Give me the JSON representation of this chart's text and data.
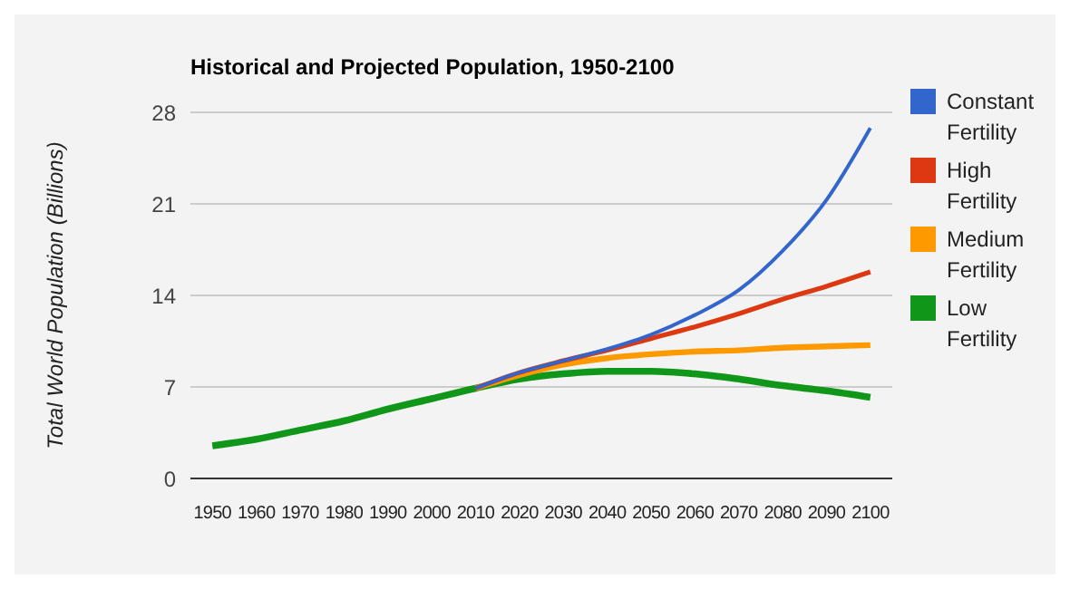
{
  "chart_data": {
    "type": "line",
    "title": "Historical and Projected Population, 1950-2100",
    "ylabel": "Total World Population (Billions)",
    "x": [
      1950,
      1960,
      1970,
      1980,
      1990,
      2000,
      2010,
      2020,
      2030,
      2040,
      2050,
      2060,
      2070,
      2080,
      2090,
      2100
    ],
    "series": [
      {
        "name": "Constant Fertility",
        "color": "#3366cc",
        "values": [
          null,
          null,
          null,
          null,
          null,
          null,
          6.9,
          8.1,
          9.0,
          9.9,
          11.0,
          12.5,
          14.4,
          17.4,
          21.3,
          26.8
        ]
      },
      {
        "name": "High Fertility",
        "color": "#dc3912",
        "values": [
          null,
          null,
          null,
          null,
          null,
          null,
          6.9,
          8.1,
          9.0,
          9.8,
          10.7,
          11.6,
          12.6,
          13.7,
          14.7,
          15.8
        ]
      },
      {
        "name": "Medium Fertility",
        "color": "#ff9900",
        "values": [
          null,
          null,
          null,
          null,
          null,
          null,
          6.9,
          7.9,
          8.7,
          9.2,
          9.5,
          9.7,
          9.8,
          10.0,
          10.1,
          10.2
        ]
      },
      {
        "name": "Low Fertility",
        "color": "#109618",
        "values": [
          2.5,
          3.0,
          3.7,
          4.4,
          5.3,
          6.1,
          6.9,
          7.6,
          8.0,
          8.2,
          8.2,
          8.0,
          7.6,
          7.1,
          6.7,
          6.2
        ]
      }
    ],
    "xlim": [
      1945,
      2105
    ],
    "xticks": [
      1950,
      1960,
      1970,
      1980,
      1990,
      2000,
      2010,
      2020,
      2030,
      2040,
      2050,
      2060,
      2070,
      2080,
      2090,
      2100
    ],
    "ylim": [
      0,
      28
    ],
    "yticks": [
      0,
      7,
      14,
      21,
      28
    ],
    "grid": "y",
    "legend": "right",
    "marker": "none",
    "line_style": "solid"
  }
}
